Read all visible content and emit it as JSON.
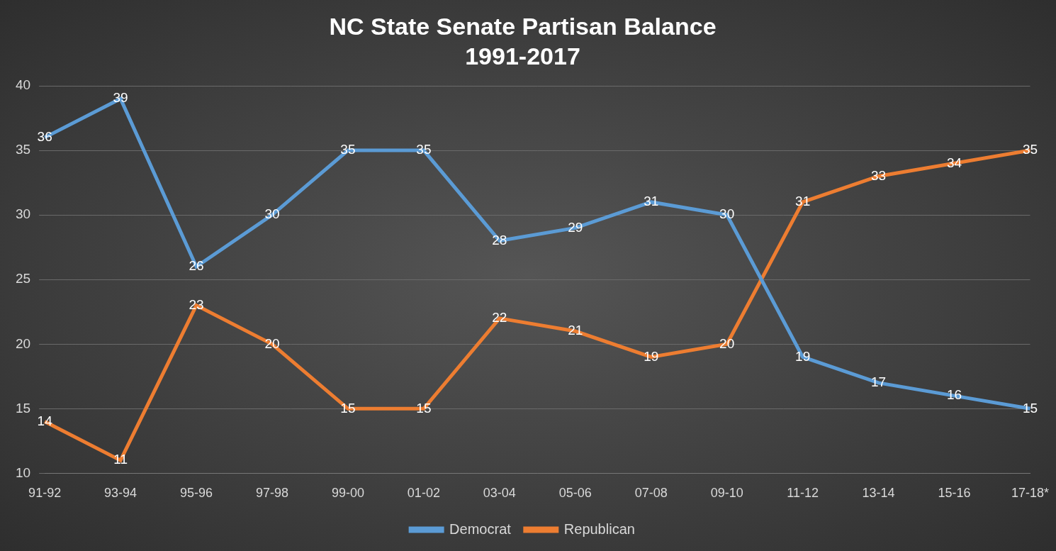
{
  "chart_data": {
    "type": "line",
    "title": [
      "NC State Senate Partisan Balance",
      "1991-2017"
    ],
    "categories": [
      "91-92",
      "93-94",
      "95-96",
      "97-98",
      "99-00",
      "01-02",
      "03-04",
      "05-06",
      "07-08",
      "09-10",
      "11-12",
      "13-14",
      "15-16",
      "17-18*"
    ],
    "series": [
      {
        "name": "Democrat",
        "color": "#5b9bd5",
        "values": [
          36,
          39,
          26,
          30,
          35,
          35,
          28,
          29,
          31,
          30,
          19,
          17,
          16,
          15
        ]
      },
      {
        "name": "Republican",
        "color": "#ed7d31",
        "values": [
          14,
          11,
          23,
          20,
          15,
          15,
          22,
          21,
          19,
          20,
          31,
          33,
          34,
          35
        ]
      }
    ],
    "ylim": [
      10,
      40
    ],
    "yticks": [
      10,
      15,
      20,
      25,
      30,
      35,
      40
    ],
    "grid": true,
    "legend": "bottom",
    "data_labels": true
  }
}
